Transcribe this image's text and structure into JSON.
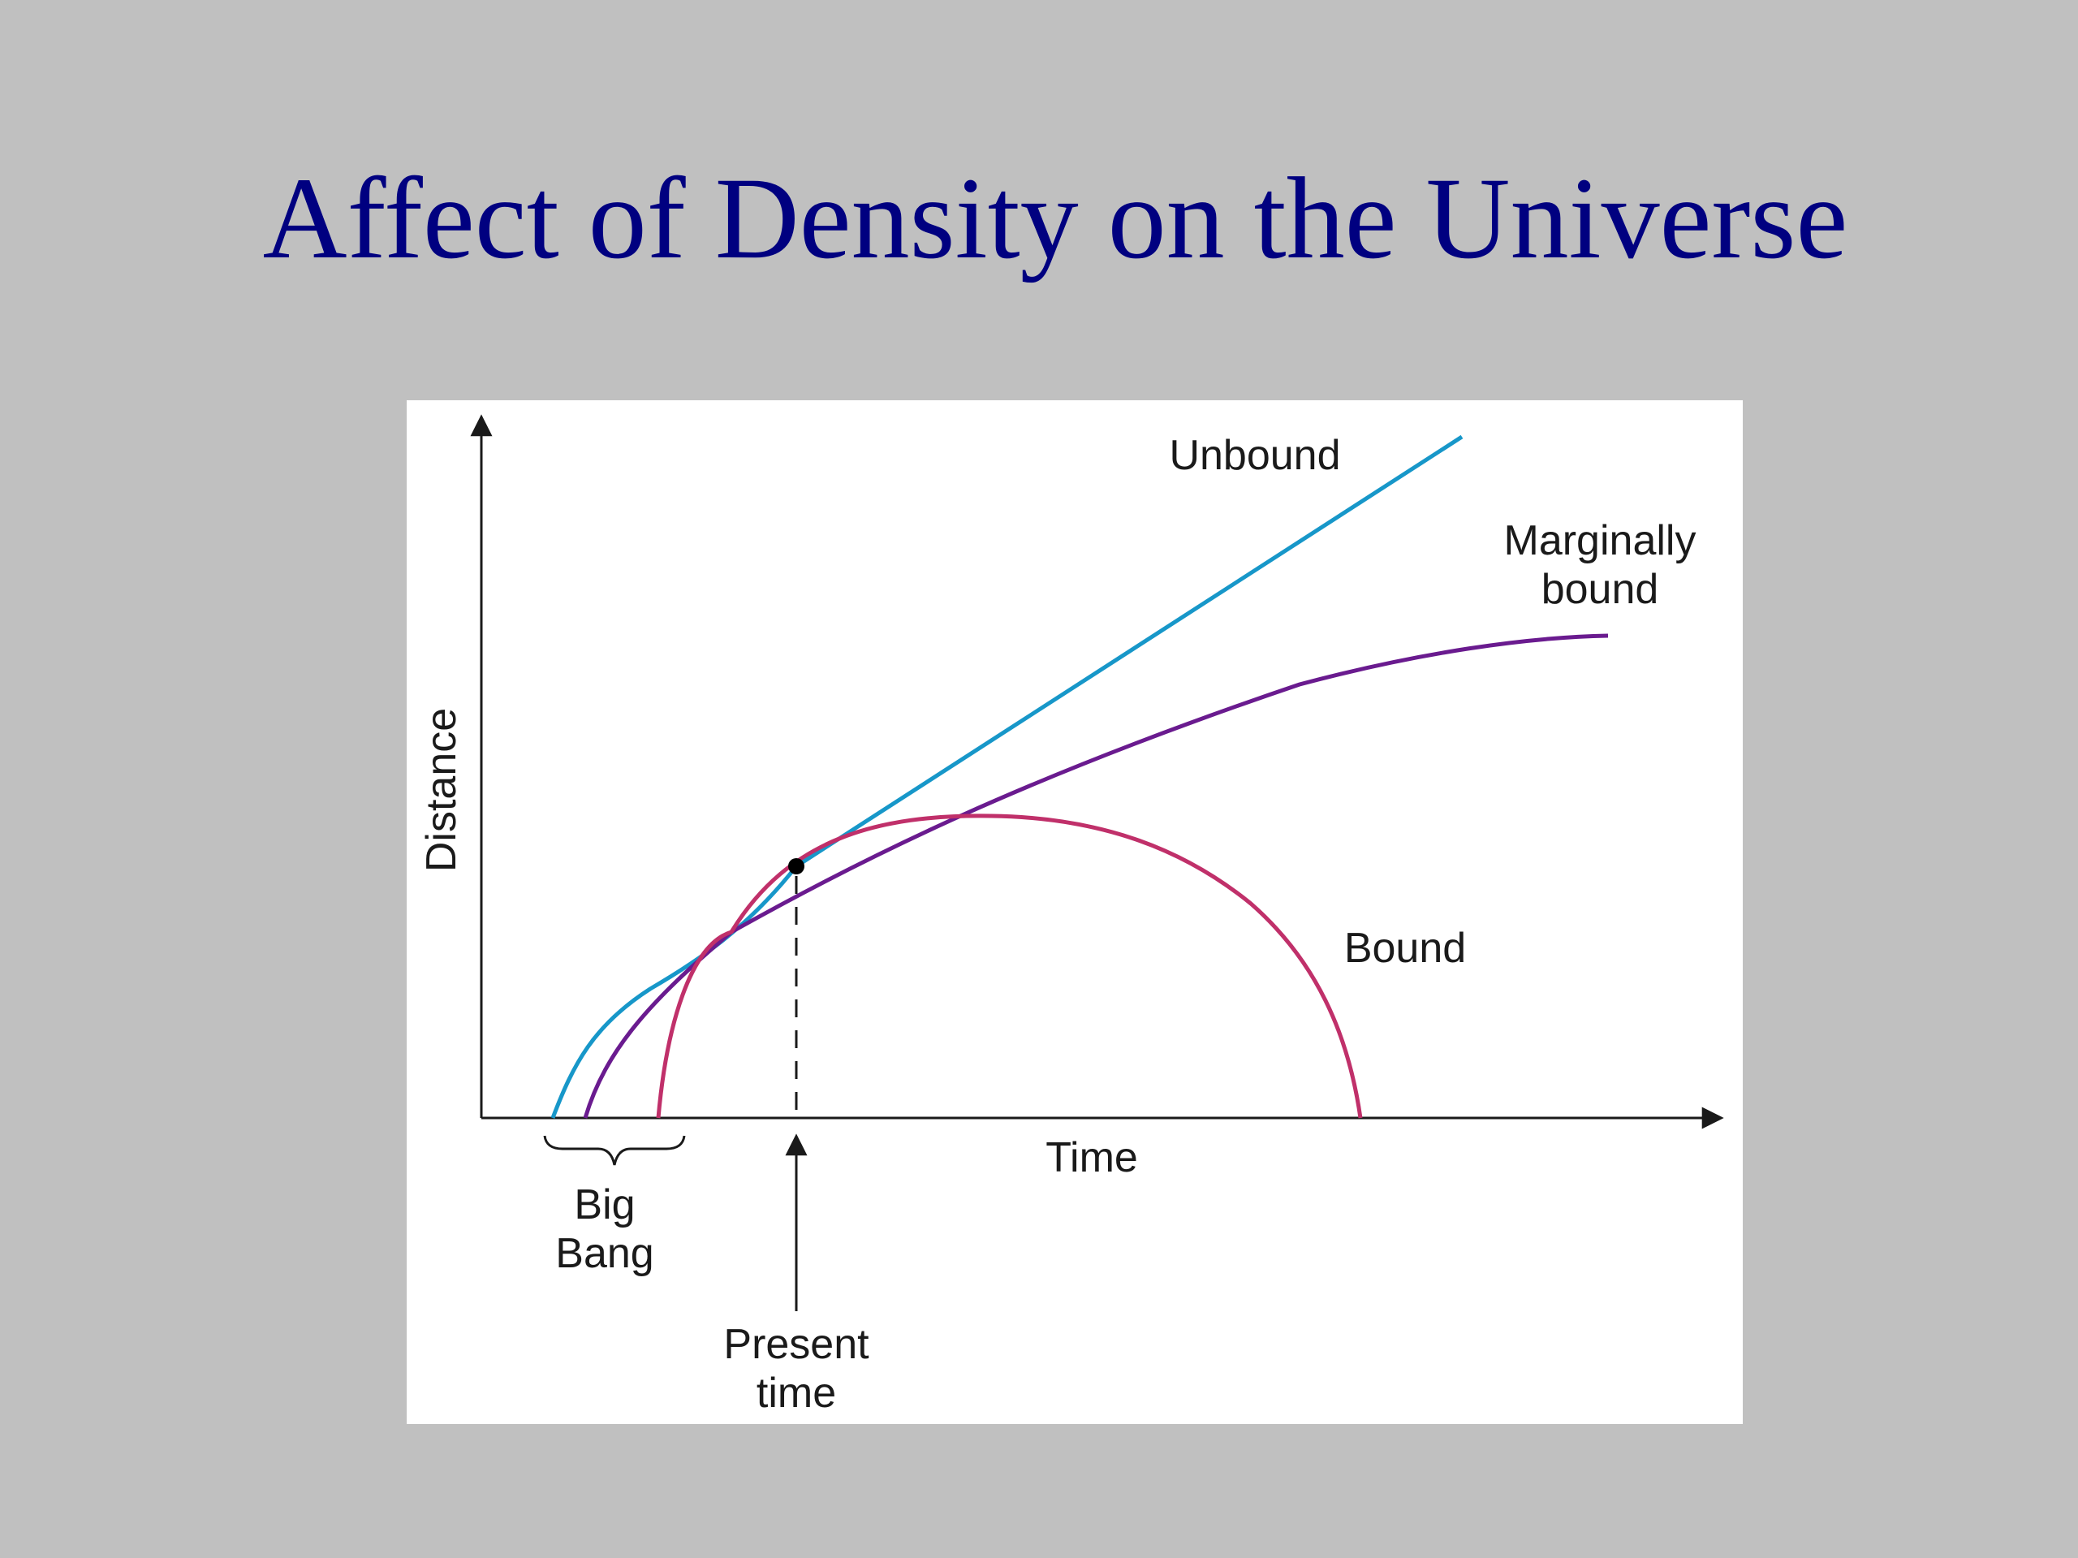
{
  "slide": {
    "title": "Affect of Density on the Universe"
  },
  "diagram": {
    "y_axis_label": "Distance",
    "x_axis_label": "Time",
    "curves": {
      "unbound": {
        "label": "Unbound",
        "color": "#1797c9"
      },
      "marginally_bound": {
        "label_line1": "Marginally",
        "label_line2": "bound",
        "color": "#6a1b8f"
      },
      "bound": {
        "label": "Bound",
        "color": "#c0306a"
      }
    },
    "big_bang": {
      "line1": "Big",
      "line2": "Bang"
    },
    "present_time": {
      "line1": "Present",
      "line2": "time"
    }
  }
}
